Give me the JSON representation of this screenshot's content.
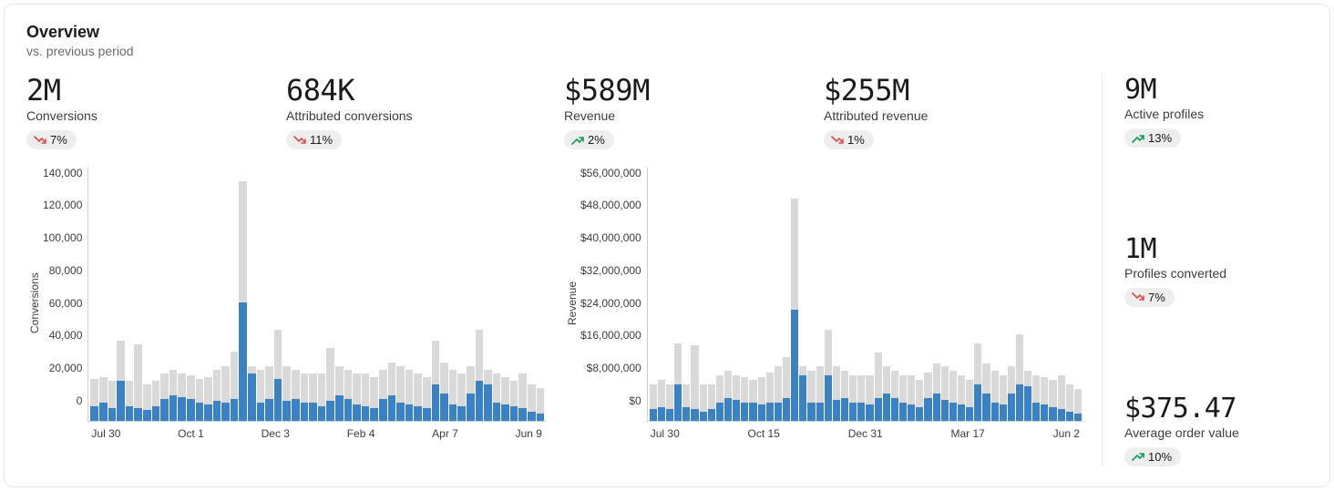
{
  "header": {
    "title": "Overview",
    "subtitle": "vs. previous period"
  },
  "colors": {
    "bar_fg": "#3b82c4",
    "bar_bg": "#d9d9d9",
    "badge_bg": "#eeeeee",
    "up": "#0f9d58",
    "down": "#e14b4b",
    "text": "#1a1a1a",
    "muted": "#6b6b6b",
    "border": "#e6e6e6",
    "axis": "#d0d0d0"
  },
  "left_block": {
    "metrics": [
      {
        "key": "conversions",
        "value": "2M",
        "label": "Conversions",
        "delta": "7%",
        "direction": "down"
      },
      {
        "key": "attr-conversions",
        "value": "684K",
        "label": "Attributed conversions",
        "delta": "11%",
        "direction": "down"
      }
    ],
    "chart": {
      "type": "bar",
      "ylabel": "Conversions",
      "y_ticks": [
        "140,000",
        "120,000",
        "100,000",
        "80,000",
        "60,000",
        "40,000",
        "20,000",
        "0"
      ],
      "y_max": 140000,
      "x_ticks": [
        "Jul 30",
        "Oct 1",
        "Dec 3",
        "Feb 4",
        "Apr 7",
        "Jun 9"
      ],
      "fg": [
        8000,
        10000,
        7000,
        22000,
        8000,
        7000,
        6000,
        8000,
        12000,
        14000,
        13000,
        12000,
        10000,
        9000,
        11000,
        10000,
        12000,
        65000,
        26000,
        10000,
        12000,
        23000,
        11000,
        12000,
        10000,
        10000,
        8000,
        11000,
        14000,
        12000,
        9000,
        8000,
        7000,
        12000,
        14000,
        10000,
        9000,
        8000,
        7000,
        20000,
        15000,
        9000,
        8000,
        15000,
        22000,
        20000,
        10000,
        9000,
        8000,
        7000,
        5000,
        4000
      ],
      "bg": [
        23000,
        24000,
        22000,
        44000,
        22000,
        42000,
        20000,
        22000,
        26000,
        28000,
        26000,
        25000,
        23000,
        24000,
        28000,
        30000,
        38000,
        132000,
        30000,
        28000,
        30000,
        50000,
        30000,
        28000,
        26000,
        26000,
        26000,
        40000,
        30000,
        28000,
        26000,
        26000,
        24000,
        28000,
        32000,
        30000,
        28000,
        26000,
        24000,
        44000,
        32000,
        28000,
        26000,
        30000,
        50000,
        28000,
        26000,
        24000,
        22000,
        26000,
        20000,
        18000
      ]
    }
  },
  "right_block": {
    "metrics": [
      {
        "key": "revenue",
        "value": "$589M",
        "label": "Revenue",
        "delta": "2%",
        "direction": "up"
      },
      {
        "key": "attr-revenue",
        "value": "$255M",
        "label": "Attributed revenue",
        "delta": "1%",
        "direction": "down"
      }
    ],
    "chart": {
      "type": "bar",
      "ylabel": "Revenue",
      "y_ticks": [
        "$56,000,000",
        "$48,000,000",
        "$40,000,000",
        "$32,000,000",
        "$24,000,000",
        "$16,000,000",
        "$8,000,000",
        "$0"
      ],
      "y_max": 56000000,
      "x_ticks": [
        "Jul 30",
        "Oct 15",
        "Dec 31",
        "Mar 17",
        "Jun 2"
      ],
      "fg": [
        2500000,
        3000000,
        2500000,
        8000000,
        3000000,
        2500000,
        2000000,
        2500000,
        4000000,
        5000000,
        4500000,
        4000000,
        4000000,
        3500000,
        4000000,
        4000000,
        5000000,
        24500000,
        10000000,
        4000000,
        4000000,
        10000000,
        4500000,
        5000000,
        4000000,
        4000000,
        3500000,
        5000000,
        6000000,
        5000000,
        4000000,
        3500000,
        3000000,
        5000000,
        6000000,
        4500000,
        4000000,
        3500000,
        3000000,
        8000000,
        6000000,
        4000000,
        3500000,
        6000000,
        8000000,
        7500000,
        4000000,
        3500000,
        3000000,
        2500000,
        2000000,
        1500000
      ],
      "bg": [
        8000000,
        9000000,
        8000000,
        17000000,
        8000000,
        16500000,
        8000000,
        8000000,
        10000000,
        11000000,
        10000000,
        9500000,
        9000000,
        9500000,
        10500000,
        12000000,
        14000000,
        49000000,
        12000000,
        11000000,
        12000000,
        20000000,
        12000000,
        11000000,
        10000000,
        10000000,
        10000000,
        15000000,
        12000000,
        11000000,
        10000000,
        10000000,
        9000000,
        10500000,
        12500000,
        12000000,
        11000000,
        10000000,
        9000000,
        17000000,
        12500000,
        11000000,
        10000000,
        12000000,
        19000000,
        11000000,
        10000000,
        9500000,
        9000000,
        10000000,
        8000000,
        7000000
      ]
    }
  },
  "side": [
    {
      "key": "active-profiles",
      "value": "9M",
      "label": "Active profiles",
      "delta": "13%",
      "direction": "up"
    },
    {
      "key": "profiles-converted",
      "value": "1M",
      "label": "Profiles converted",
      "delta": "7%",
      "direction": "down"
    },
    {
      "key": "aov",
      "value": "$375.47",
      "label": "Average order value",
      "delta": "10%",
      "direction": "up"
    }
  ]
}
